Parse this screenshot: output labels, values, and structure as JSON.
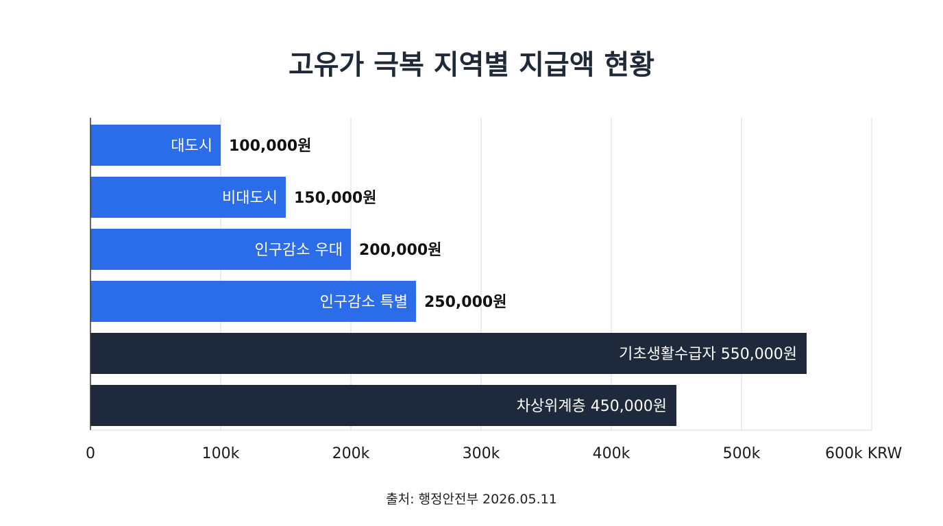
{
  "chart_data": {
    "type": "bar",
    "orientation": "horizontal",
    "title": "고유가 극복 지역별 지급액 현황",
    "source": "출처: 행정안전부 2026.05.11",
    "x_unit": "KRW",
    "xlim": [
      0,
      600000
    ],
    "x_ticks": [
      0,
      100000,
      200000,
      300000,
      400000,
      500000,
      600000
    ],
    "x_tick_labels": [
      "0",
      "100k",
      "200k",
      "300k",
      "400k",
      "500k",
      "600k KRW"
    ],
    "grid": true,
    "colors": {
      "region": "#2b6de9",
      "vulnerable": "#1e293b",
      "grid": "#d9d9d9",
      "axis": "#333333"
    },
    "bars": [
      {
        "category": "대도시",
        "value": 100000,
        "value_label": "100,000원",
        "group": "region",
        "label_position": "split"
      },
      {
        "category": "비대도시",
        "value": 150000,
        "value_label": "150,000원",
        "group": "region",
        "label_position": "split"
      },
      {
        "category": "인구감소 우대",
        "value": 200000,
        "value_label": "200,000원",
        "group": "region",
        "label_position": "split"
      },
      {
        "category": "인구감소 특별",
        "value": 250000,
        "value_label": "250,000원",
        "group": "region",
        "label_position": "split"
      },
      {
        "category": "기초생활수급자",
        "value": 550000,
        "value_label": "550,000원",
        "group": "vulnerable",
        "label_position": "inside"
      },
      {
        "category": "차상위계층",
        "value": 450000,
        "value_label": "450,000원",
        "group": "vulnerable",
        "label_position": "inside"
      }
    ]
  }
}
